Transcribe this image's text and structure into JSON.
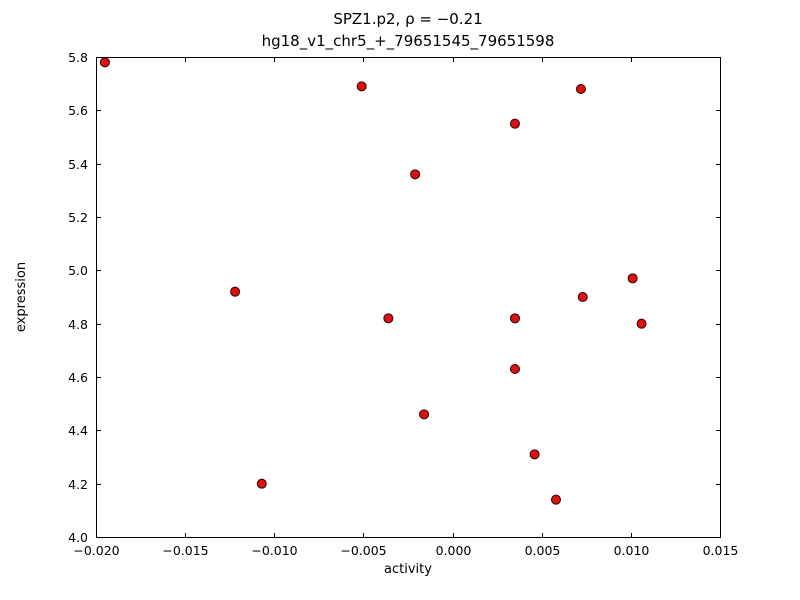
{
  "figure": {
    "title_line1": "SPZ1.p2, ρ = −0.21",
    "title_line2": "hg18_v1_chr5_+_79651545_79651598",
    "xlabel": "activity",
    "ylabel": "expression"
  },
  "chart_data": {
    "type": "scatter",
    "title": "SPZ1.p2, ρ = −0.21",
    "subtitle": "hg18_v1_chr5_+_79651545_79651598",
    "xlabel": "activity",
    "ylabel": "expression",
    "xlim": [
      -0.02,
      0.015
    ],
    "ylim": [
      4.0,
      5.8
    ],
    "grid": false,
    "legend": "none",
    "x_ticks": [
      -0.02,
      -0.015,
      -0.01,
      -0.005,
      0.0,
      0.005,
      0.01,
      0.015
    ],
    "x_tick_labels": [
      "−0.020",
      "−0.015",
      "−0.010",
      "−0.005",
      "0.000",
      "0.005",
      "0.010",
      "0.015"
    ],
    "y_ticks": [
      4.0,
      4.2,
      4.4,
      4.6,
      4.8,
      5.0,
      5.2,
      5.4,
      5.6,
      5.8
    ],
    "y_tick_labels": [
      "4.0",
      "4.2",
      "4.4",
      "4.6",
      "4.8",
      "5.0",
      "5.2",
      "5.4",
      "5.6",
      "5.8"
    ],
    "points": [
      [
        -0.0195,
        5.78
      ],
      [
        -0.0051,
        5.69
      ],
      [
        0.0072,
        5.68
      ],
      [
        0.0035,
        5.55
      ],
      [
        -0.0021,
        5.36
      ],
      [
        0.0101,
        4.97
      ],
      [
        -0.0122,
        4.92
      ],
      [
        0.0073,
        4.9
      ],
      [
        -0.0036,
        4.82
      ],
      [
        0.0035,
        4.82
      ],
      [
        0.0106,
        4.8
      ],
      [
        0.0035,
        4.63
      ],
      [
        -0.0016,
        4.46
      ],
      [
        0.0046,
        4.31
      ],
      [
        -0.0107,
        4.2
      ],
      [
        0.0058,
        4.14
      ]
    ],
    "marker": {
      "shape": "circle",
      "face_color": "#dd1111",
      "edge_color": "#300000",
      "radius": 4.5
    },
    "axes": {
      "frame_color": "#000000",
      "tick_length": 4,
      "plot_left": 96,
      "plot_top": 57,
      "plot_right": 720,
      "plot_bottom": 537
    }
  }
}
